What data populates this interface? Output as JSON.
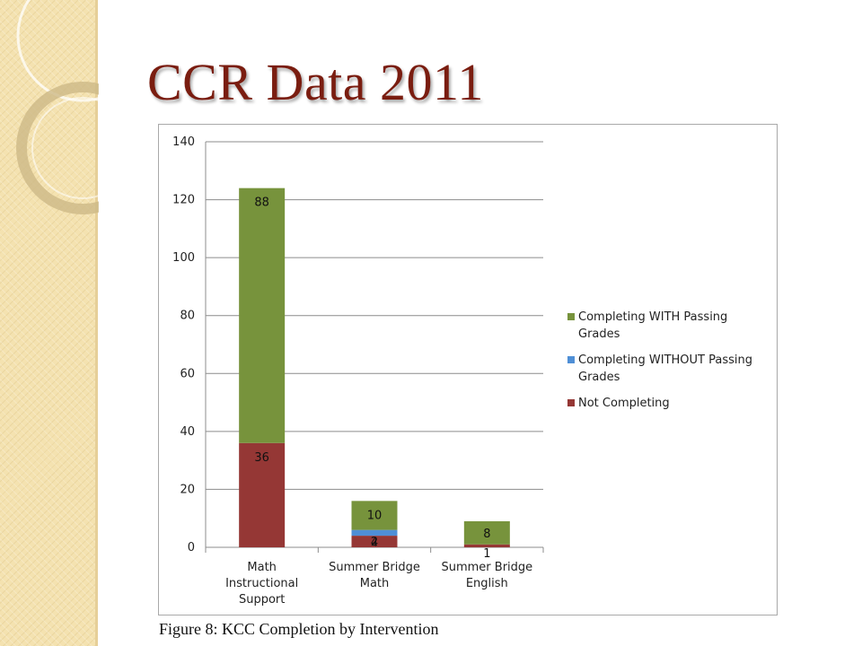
{
  "slide": {
    "title": "CCR Data 2011",
    "caption": "Figure 8: KCC Completion by Intervention"
  },
  "chart_data": {
    "type": "bar",
    "stacked": true,
    "title": "",
    "xlabel": "",
    "ylabel": "",
    "ylim": [
      0,
      140
    ],
    "yticks": [
      0,
      20,
      40,
      60,
      80,
      100,
      120,
      140
    ],
    "grid": true,
    "legend_position": "right",
    "categories": [
      [
        "Math",
        "Instructional",
        "Support"
      ],
      [
        "Summer Bridge",
        "Math"
      ],
      [
        "Summer Bridge",
        "English"
      ]
    ],
    "series": [
      {
        "name": "Not Completing",
        "color": "#953735",
        "values": [
          36,
          4,
          1
        ]
      },
      {
        "name": "Completing WITHOUT Passing Grades",
        "color": "#4f8fd6",
        "values": [
          0,
          2,
          0
        ]
      },
      {
        "name": "Completing WITH Passing Grades",
        "color": "#77933c",
        "values": [
          88,
          10,
          8
        ]
      }
    ],
    "legend_order": [
      {
        "lines": [
          "Completing WITH Passing",
          "Grades"
        ],
        "color": "#77933c"
      },
      {
        "lines": [
          "Completing WITHOUT Passing",
          "Grades"
        ],
        "color": "#4f8fd6"
      },
      {
        "lines": [
          "Not Completing"
        ],
        "color": "#953735"
      }
    ]
  }
}
